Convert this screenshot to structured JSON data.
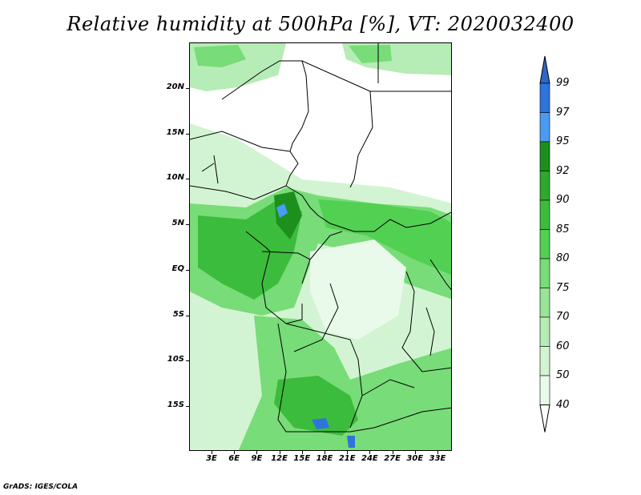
{
  "title": "Relative humidity at 500hPa [%], VT: 2020032400",
  "credit": "GrADS: IGES/COLA",
  "map": {
    "lat_labels": [
      "20N",
      "15N",
      "10N",
      "5N",
      "EQ",
      "5S",
      "10S",
      "15S"
    ],
    "lon_labels": [
      "3E",
      "6E",
      "9E",
      "12E",
      "15E",
      "18E",
      "21E",
      "24E",
      "27E",
      "30E",
      "33E"
    ]
  },
  "colorbar": {
    "levels": [
      "99",
      "97",
      "95",
      "92",
      "90",
      "85",
      "80",
      "75",
      "70",
      "60",
      "50",
      "40"
    ],
    "colors": {
      "above_99": "#2e66c8",
      "97_99": "#2f74db",
      "95_97": "#4a9cf2",
      "92_95": "#1d8f1d",
      "90_92": "#2fa82f",
      "85_90": "#3cbc3c",
      "80_85": "#52d052",
      "75_80": "#78dc78",
      "70_75": "#98e498",
      "60_70": "#b6ecb6",
      "50_60": "#d2f4d2",
      "40_50": "#eafaea",
      "below_40": "#ffffff"
    }
  }
}
